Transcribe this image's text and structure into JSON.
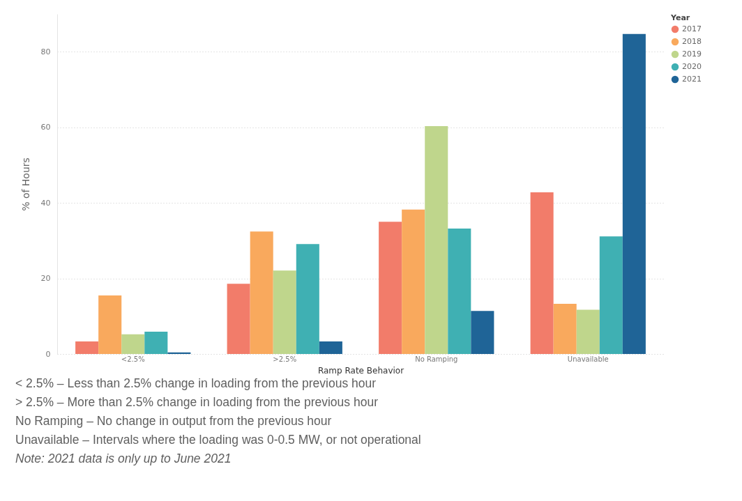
{
  "chart_data": {
    "type": "bar",
    "xlabel": "Ramp Rate Behavior",
    "ylabel": "% of Hours",
    "legend_title": "Year",
    "categories": [
      "<2.5%",
      ">2.5%",
      "No Ramping",
      "Unavailable"
    ],
    "series": [
      {
        "name": "2017",
        "color": "#f27c6a",
        "values": [
          3.3,
          18.6,
          35.0,
          42.8
        ]
      },
      {
        "name": "2018",
        "color": "#f9a95d",
        "values": [
          15.5,
          32.4,
          38.2,
          13.3
        ]
      },
      {
        "name": "2019",
        "color": "#bfd68c",
        "values": [
          5.2,
          22.1,
          60.3,
          11.7
        ]
      },
      {
        "name": "2020",
        "color": "#3fb0b3",
        "values": [
          5.9,
          29.1,
          33.2,
          31.1
        ]
      },
      {
        "name": "2021",
        "color": "#1f6497",
        "values": [
          0.4,
          3.3,
          11.4,
          84.7
        ]
      }
    ],
    "ylim": [
      0,
      90
    ],
    "yticks": [
      0,
      20,
      40,
      60,
      80
    ],
    "grid": "y",
    "legend": "top right",
    "annotations": [
      "< 2.5% – Less than 2.5% change in loading from the previous hour",
      "> 2.5% – More than 2.5% change in loading from the previous hour",
      "No Ramping – No change in output from the previous hour",
      "Unavailable – Intervals where the loading was 0-0.5 MW, or not operational",
      "Note: 2021 data is only up to June 2021"
    ]
  }
}
